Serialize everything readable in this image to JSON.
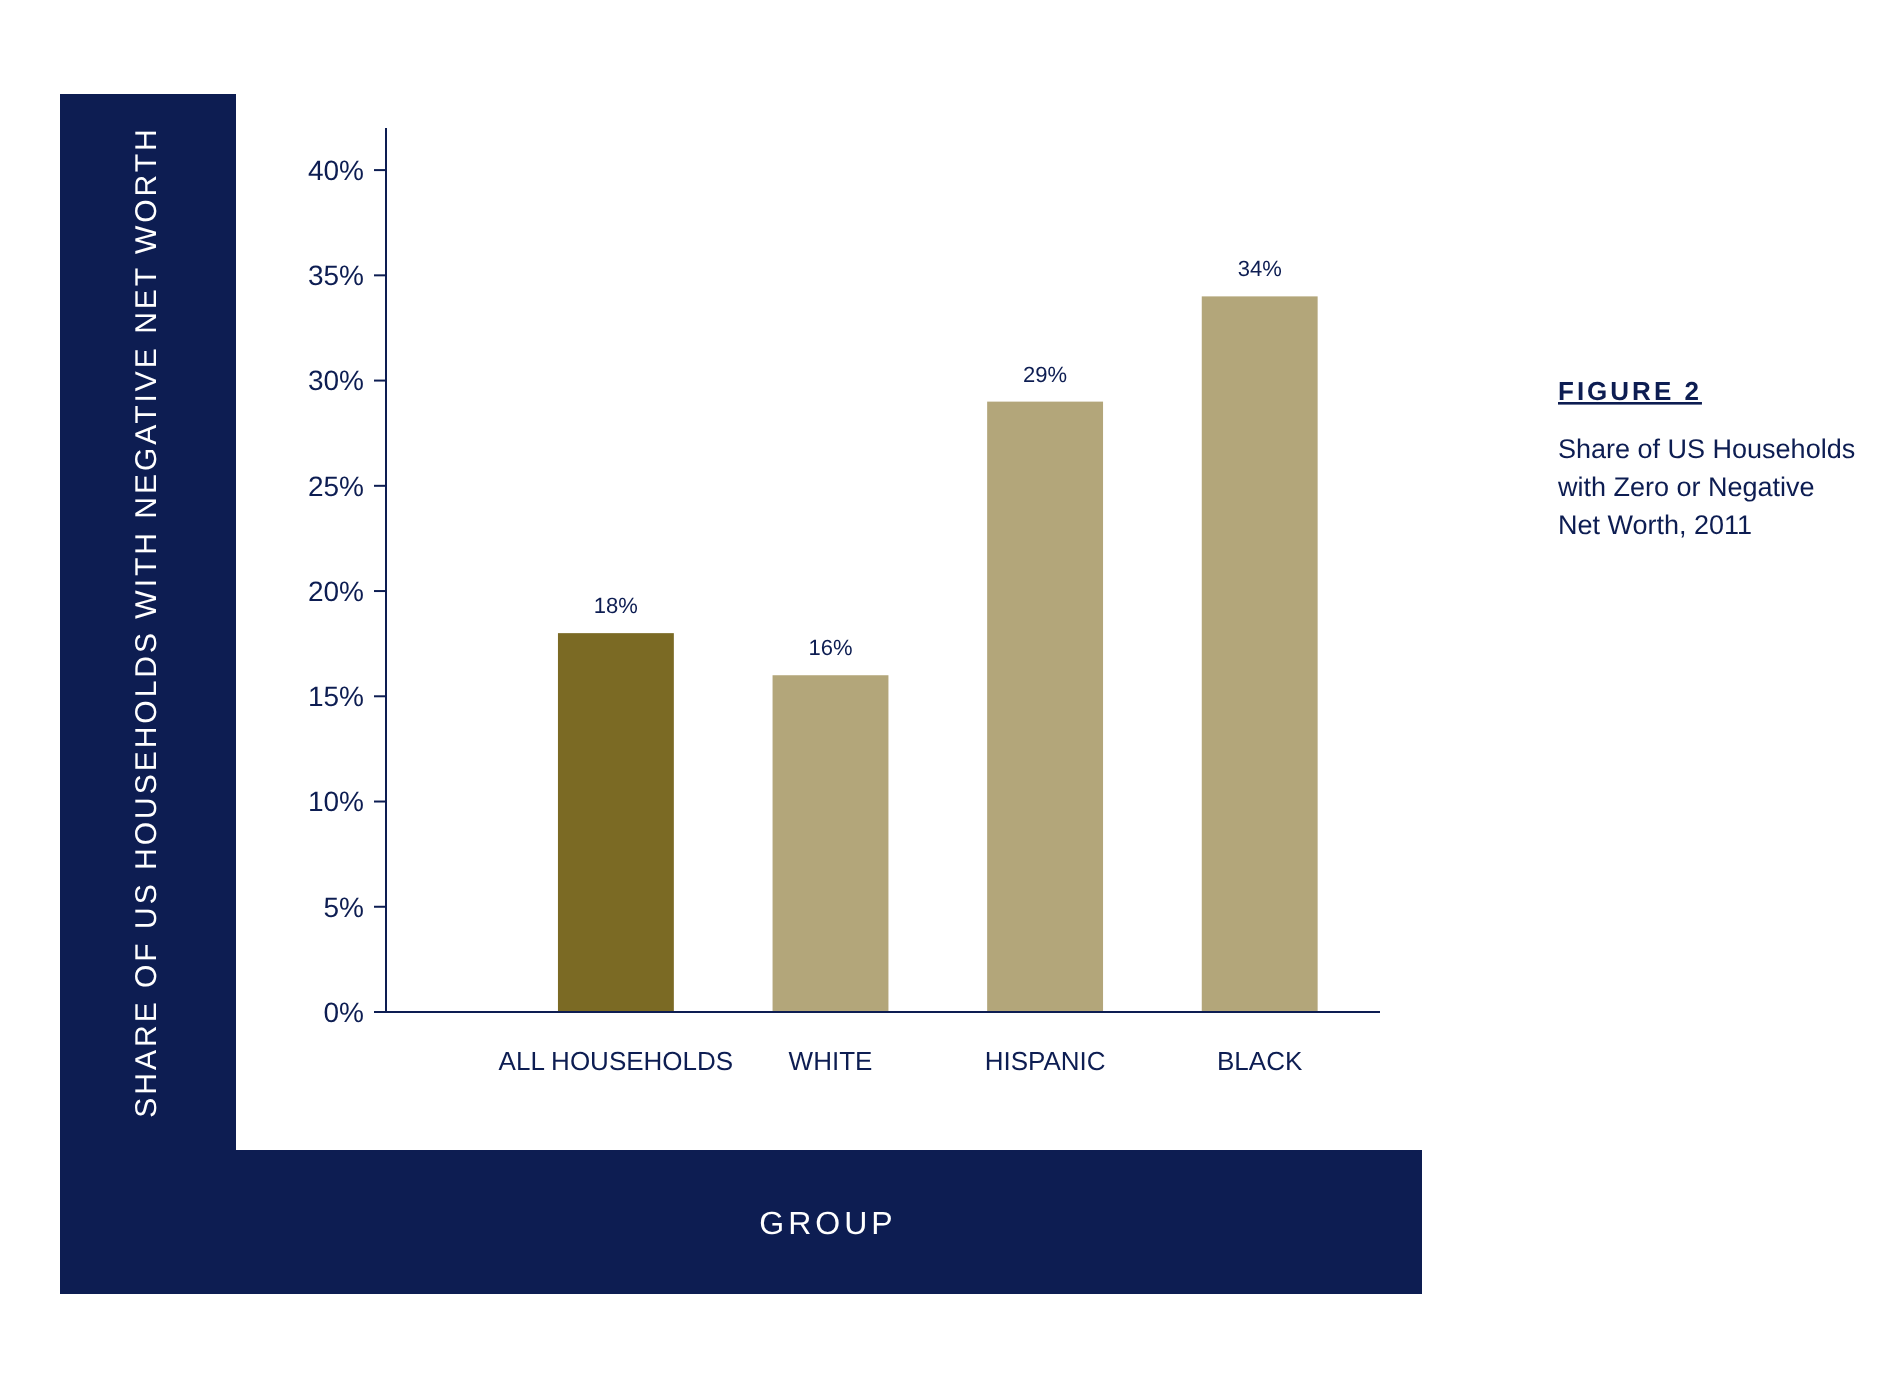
{
  "chart_data": {
    "type": "bar",
    "title": "FIGURE 2",
    "subtitle": "Share of US Households with Zero or Negative Net Worth, 2011",
    "xlabel": "GROUP",
    "ylabel": "SHARE OF US HOUSEHOLDS WITH NEGATIVE NET WORTH",
    "categories": [
      "ALL HOUSEHOLDS",
      "WHITE",
      "HISPANIC",
      "BLACK"
    ],
    "values": [
      18,
      16,
      29,
      34
    ],
    "colors": [
      "#7b6a24",
      "#b3a67a",
      "#b3a67a",
      "#b3a67a"
    ],
    "value_labels": [
      "18%",
      "16%",
      "29%",
      "34%"
    ],
    "ylim": [
      0,
      42
    ],
    "yticks": [
      {
        "value": 0,
        "label": "0%"
      },
      {
        "value": 5,
        "label": "5%"
      },
      {
        "value": 10,
        "label": "10%"
      },
      {
        "value": 15,
        "label": "15%"
      },
      {
        "value": 20,
        "label": "20%"
      },
      {
        "value": 25,
        "label": "25%"
      },
      {
        "value": 30,
        "label": "30%"
      },
      {
        "value": 35,
        "label": "35%"
      },
      {
        "value": 40,
        "label": "40%"
      }
    ]
  }
}
